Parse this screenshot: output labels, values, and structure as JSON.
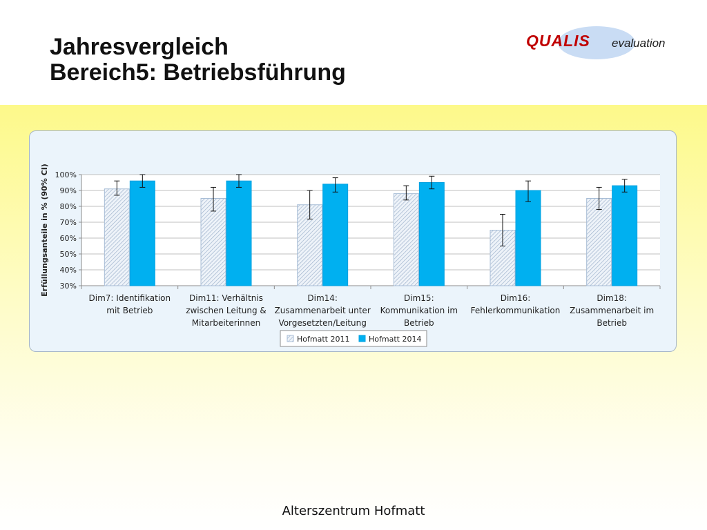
{
  "slide": {
    "title_line1": "Jahresvergleich",
    "title_line2": "Bereich5: Betriebsführung",
    "footer": "Alterszentrum Hofmatt"
  },
  "logo": {
    "main": "QUALIS",
    "sub": "evaluation",
    "color": "#c00000",
    "ellipse_color": "#c9dcf4"
  },
  "chart_data": {
    "type": "bar",
    "ylabel": "Erfüllungsanteile in % (90% CI)",
    "ylim": [
      30,
      100
    ],
    "yticks": [
      "30%",
      "40%",
      "50%",
      "60%",
      "70%",
      "80%",
      "90%",
      "100%"
    ],
    "grid": true,
    "legend_position": "bottom",
    "categories": [
      [
        "Dim7: Identifikation",
        "mit Betrieb"
      ],
      [
        "Dim11: Verhältnis",
        "zwischen Leitung &",
        "Mitarbeiterinnen"
      ],
      [
        "Dim14:",
        "Zusammenarbeit unter",
        "Vorgesetzten/Leitung"
      ],
      [
        "Dim15:",
        "Kommunikation im",
        "Betrieb"
      ],
      [
        "Dim16:",
        "Fehlerkommunikation"
      ],
      [
        "Dim18:",
        "Zusammenarbeit im",
        "Betrieb"
      ]
    ],
    "series": [
      {
        "name": "Hofmatt 2011",
        "pattern": "hatched",
        "color": "#b8cce4",
        "values": [
          91,
          85,
          81,
          88,
          65,
          85
        ],
        "ci_low": [
          87,
          77,
          72,
          84,
          55,
          78
        ],
        "ci_high": [
          96,
          92,
          90,
          93,
          75,
          92
        ]
      },
      {
        "name": "Hofmatt 2014",
        "pattern": "solid",
        "color": "#00b0f0",
        "values": [
          96,
          96,
          94,
          95,
          90,
          93
        ],
        "ci_low": [
          92,
          92,
          89,
          91,
          83,
          89
        ],
        "ci_high": [
          100,
          100,
          98,
          99,
          96,
          97
        ]
      }
    ]
  }
}
